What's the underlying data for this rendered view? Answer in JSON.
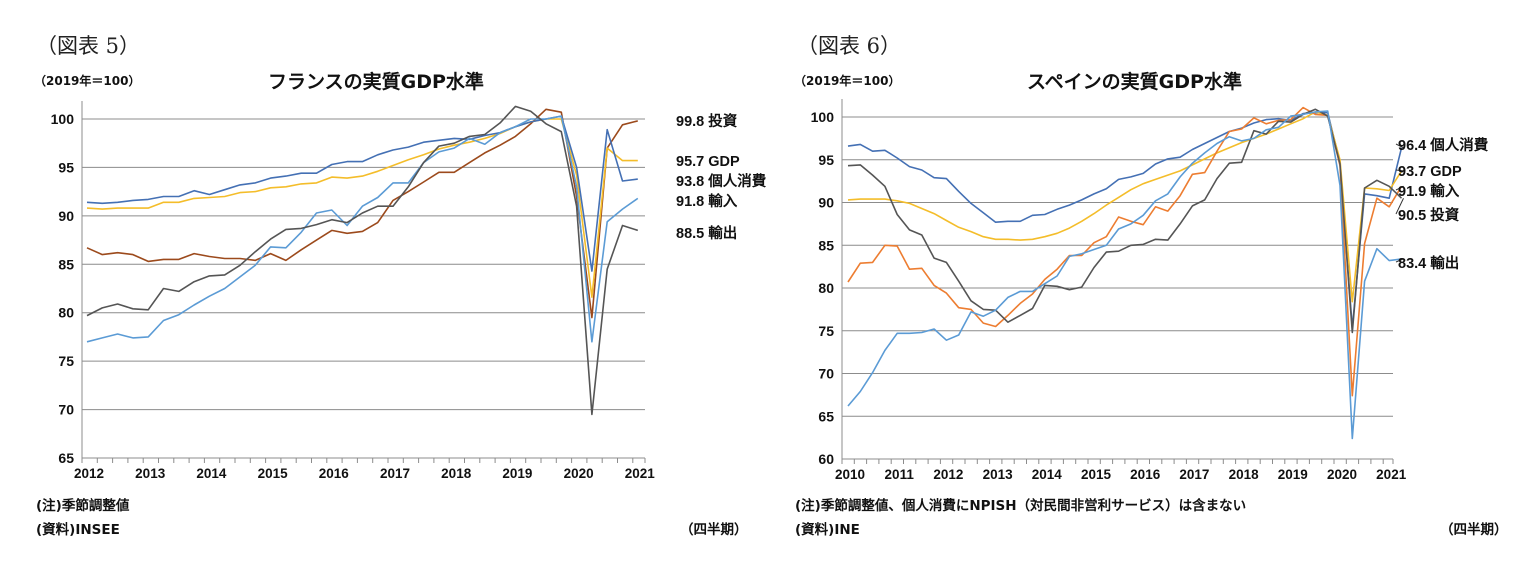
{
  "chart_data": [
    {
      "type": "line",
      "figure_label": "（図表 5）",
      "title": "フランスの実質GDP水準",
      "ylabel": "（2019年＝100）",
      "xlabel": "（四半期）",
      "note": "(注)季節調整値",
      "source": "(資料)INSEE",
      "ylim": [
        65,
        100
      ],
      "yticks": [
        65,
        70,
        75,
        80,
        85,
        90,
        95,
        100
      ],
      "xtick_labels": [
        "2012",
        "2013",
        "2014",
        "2015",
        "2016",
        "2017",
        "2018",
        "2019",
        "2020",
        "2021"
      ],
      "grid": true,
      "x": [
        "2012Q1",
        "2012Q2",
        "2012Q3",
        "2012Q4",
        "2013Q1",
        "2013Q2",
        "2013Q3",
        "2013Q4",
        "2014Q1",
        "2014Q2",
        "2014Q3",
        "2014Q4",
        "2015Q1",
        "2015Q2",
        "2015Q3",
        "2015Q4",
        "2016Q1",
        "2016Q2",
        "2016Q3",
        "2016Q4",
        "2017Q1",
        "2017Q2",
        "2017Q3",
        "2017Q4",
        "2018Q1",
        "2018Q2",
        "2018Q3",
        "2018Q4",
        "2019Q1",
        "2019Q2",
        "2019Q3",
        "2019Q4",
        "2020Q1",
        "2020Q2",
        "2020Q3",
        "2020Q4",
        "2021Q1"
      ],
      "series": [
        {
          "name": "投資",
          "end_label": "99.8",
          "color": "#9c4a1c",
          "values": [
            86.7,
            86.0,
            86.2,
            86.0,
            85.3,
            85.5,
            85.5,
            86.1,
            85.8,
            85.6,
            85.6,
            85.4,
            86.1,
            85.4,
            86.5,
            87.5,
            88.5,
            88.2,
            88.4,
            89.3,
            91.6,
            92.5,
            93.5,
            94.5,
            94.5,
            95.5,
            96.5,
            97.3,
            98.2,
            99.5,
            101.0,
            100.7,
            92.0,
            79.5,
            97.0,
            99.4,
            99.8
          ]
        },
        {
          "name": "GDP",
          "end_label": "95.7",
          "color": "#f4bd2a",
          "values": [
            90.8,
            90.7,
            90.8,
            90.8,
            90.8,
            91.4,
            91.4,
            91.8,
            91.9,
            92.0,
            92.4,
            92.5,
            92.9,
            93.0,
            93.3,
            93.4,
            94.0,
            93.9,
            94.1,
            94.6,
            95.2,
            95.8,
            96.3,
            96.9,
            97.3,
            97.6,
            98.0,
            98.5,
            99.2,
            99.7,
            100.0,
            100.0,
            94.2,
            81.6,
            97.0,
            95.7,
            95.7
          ]
        },
        {
          "name": "個人消費",
          "end_label": "93.8",
          "color": "#4470b4",
          "values": [
            91.4,
            91.3,
            91.4,
            91.6,
            91.7,
            92.0,
            92.0,
            92.6,
            92.2,
            92.7,
            93.2,
            93.4,
            93.9,
            94.1,
            94.4,
            94.4,
            95.3,
            95.6,
            95.6,
            96.3,
            96.8,
            97.1,
            97.6,
            97.8,
            98.0,
            97.9,
            98.3,
            98.6,
            99.2,
            99.7,
            100.0,
            100.3,
            95.0,
            84.3,
            98.9,
            93.6,
            93.8
          ]
        },
        {
          "name": "輸入",
          "end_label": "91.8",
          "color": "#5b9bd5",
          "values": [
            77.0,
            77.4,
            77.8,
            77.4,
            77.5,
            79.2,
            79.8,
            80.8,
            81.7,
            82.5,
            83.7,
            84.9,
            86.8,
            86.7,
            88.3,
            90.3,
            90.6,
            89.0,
            91.0,
            91.9,
            93.4,
            93.4,
            95.5,
            96.6,
            97.0,
            98.0,
            97.4,
            98.6,
            99.2,
            100.0,
            100.0,
            100.3,
            93.0,
            77.0,
            89.4,
            90.7,
            91.8
          ]
        },
        {
          "name": "輸出",
          "end_label": "88.5",
          "color": "#555555",
          "values": [
            79.7,
            80.5,
            80.9,
            80.4,
            80.3,
            82.5,
            82.2,
            83.2,
            83.8,
            83.9,
            84.9,
            86.3,
            87.6,
            88.6,
            88.7,
            89.1,
            89.6,
            89.3,
            90.3,
            91.0,
            91.0,
            93.0,
            95.5,
            97.2,
            97.5,
            98.2,
            98.4,
            99.6,
            101.3,
            100.8,
            99.5,
            98.7,
            91.0,
            69.5,
            84.5,
            89.0,
            88.5
          ]
        }
      ]
    },
    {
      "type": "line",
      "figure_label": "（図表 6）",
      "title": "スペインの実質GDP水準",
      "ylabel": "（2019年＝100）",
      "xlabel": "（四半期）",
      "note": "(注)季節調整値、個人消費にNPISH（対民間非営利サービス）は含まない",
      "source": "(資料)INE",
      "ylim": [
        60,
        100
      ],
      "yticks": [
        60,
        65,
        70,
        75,
        80,
        85,
        90,
        95,
        100
      ],
      "xtick_labels": [
        "2010",
        "2011",
        "2012",
        "2013",
        "2014",
        "2015",
        "2016",
        "2017",
        "2018",
        "2019",
        "2020",
        "2021"
      ],
      "grid": true,
      "x": [
        "2010Q1",
        "2010Q2",
        "2010Q3",
        "2010Q4",
        "2011Q1",
        "2011Q2",
        "2011Q3",
        "2011Q4",
        "2012Q1",
        "2012Q2",
        "2012Q3",
        "2012Q4",
        "2013Q1",
        "2013Q2",
        "2013Q3",
        "2013Q4",
        "2014Q1",
        "2014Q2",
        "2014Q3",
        "2014Q4",
        "2015Q1",
        "2015Q2",
        "2015Q3",
        "2015Q4",
        "2016Q1",
        "2016Q2",
        "2016Q3",
        "2016Q4",
        "2017Q1",
        "2017Q2",
        "2017Q3",
        "2017Q4",
        "2018Q1",
        "2018Q2",
        "2018Q3",
        "2018Q4",
        "2019Q1",
        "2019Q2",
        "2019Q3",
        "2019Q4",
        "2020Q1",
        "2020Q2",
        "2020Q3",
        "2020Q4",
        "2021Q1",
        "2021Q2"
      ],
      "series": [
        {
          "name": "個人消費",
          "end_label": "96.4",
          "color": "#4470b4",
          "values": [
            96.6,
            96.8,
            96.0,
            96.1,
            95.2,
            94.2,
            93.8,
            92.9,
            92.8,
            91.3,
            89.9,
            88.8,
            87.7,
            87.8,
            87.8,
            88.5,
            88.6,
            89.2,
            89.7,
            90.3,
            91.0,
            91.6,
            92.7,
            93.0,
            93.4,
            94.5,
            95.1,
            95.3,
            96.2,
            96.9,
            97.6,
            98.3,
            98.7,
            99.3,
            99.7,
            99.8,
            99.6,
            100.4,
            100.5,
            100.5,
            94.7,
            75.3,
            91.0,
            90.8,
            90.5,
            96.4
          ]
        },
        {
          "name": "GDP",
          "end_label": "93.7",
          "color": "#f4bd2a",
          "values": [
            90.3,
            90.4,
            90.4,
            90.4,
            90.2,
            89.9,
            89.3,
            88.7,
            87.9,
            87.1,
            86.6,
            86.0,
            85.7,
            85.7,
            85.6,
            85.7,
            86.0,
            86.4,
            87.0,
            87.8,
            88.7,
            89.7,
            90.6,
            91.5,
            92.2,
            92.7,
            93.2,
            93.7,
            94.4,
            95.1,
            95.8,
            96.4,
            97.0,
            97.5,
            98.0,
            98.6,
            99.2,
            99.8,
            100.6,
            100.2,
            95.0,
            78.4,
            91.7,
            91.6,
            91.4,
            93.7
          ]
        },
        {
          "name": "輸入",
          "end_label": "91.9",
          "color": "#ed7d31",
          "values": [
            80.7,
            82.9,
            83.0,
            85.0,
            84.9,
            82.2,
            82.3,
            80.3,
            79.4,
            77.7,
            77.5,
            75.9,
            75.5,
            76.8,
            78.2,
            79.3,
            81.0,
            82.2,
            83.8,
            83.8,
            85.3,
            86.0,
            88.3,
            87.8,
            87.4,
            89.5,
            89.0,
            90.8,
            93.3,
            93.5,
            96.0,
            98.3,
            98.6,
            99.9,
            99.2,
            99.6,
            99.7,
            101.1,
            100.3,
            100.2,
            94.3,
            67.4,
            85.2,
            90.5,
            89.5,
            91.9
          ]
        },
        {
          "name": "投資",
          "end_label": "90.5",
          "color": "#555555",
          "values": [
            94.3,
            94.4,
            93.2,
            91.9,
            88.6,
            86.8,
            86.2,
            83.5,
            83.0,
            80.8,
            78.5,
            77.5,
            77.4,
            76.0,
            76.8,
            77.6,
            80.3,
            80.2,
            79.8,
            80.1,
            82.4,
            84.2,
            84.3,
            85.0,
            85.1,
            85.7,
            85.6,
            87.5,
            89.6,
            90.3,
            92.8,
            94.6,
            94.7,
            98.4,
            98.0,
            99.5,
            99.4,
            100.3,
            100.9,
            100.1,
            94.5,
            74.8,
            91.7,
            92.6,
            91.9,
            90.5
          ]
        },
        {
          "name": "輸出",
          "end_label": "83.4",
          "color": "#5b9bd5",
          "values": [
            66.2,
            67.9,
            70.1,
            72.7,
            74.7,
            74.7,
            74.8,
            75.2,
            73.9,
            74.5,
            77.2,
            76.7,
            77.4,
            78.9,
            79.6,
            79.6,
            80.5,
            81.4,
            83.7,
            84.0,
            84.5,
            85.0,
            86.9,
            87.5,
            88.5,
            90.2,
            91.0,
            93.0,
            94.6,
            95.8,
            96.9,
            97.7,
            97.2,
            97.5,
            98.5,
            98.8,
            100.1,
            100.3,
            100.6,
            100.7,
            92.0,
            62.4,
            80.8,
            84.6,
            83.2,
            83.4
          ]
        }
      ]
    }
  ]
}
